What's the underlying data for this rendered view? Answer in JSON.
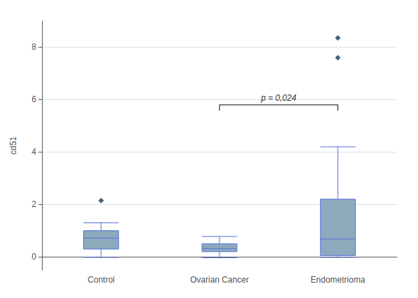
{
  "chart_data": {
    "type": "box",
    "categories": [
      "Control",
      "Ovarian Cancer",
      "Endometrioma"
    ],
    "series": [
      {
        "type": "boxplot",
        "color": "#8da9bc",
        "values": [
          [
            -0.02,
            0.3,
            0.72,
            1.0,
            1.3
          ],
          [
            -0.03,
            0.2,
            0.32,
            0.5,
            0.78
          ],
          [
            -0.02,
            0.05,
            0.68,
            2.2,
            4.2
          ]
        ]
      },
      {
        "type": "scatter",
        "color": "#1c3a58",
        "marker": "diamond",
        "values": [
          [
            2.15
          ],
          [],
          [
            7.6,
            8.35
          ]
        ]
      }
    ],
    "ylabel": "cd51",
    "ylim": [
      -0.5,
      9.0
    ],
    "yticks": [
      0,
      2,
      4,
      6,
      8
    ],
    "grid": true,
    "annotation": {
      "text": "p = 0,024",
      "x": [
        "Ovarian Cancer",
        "Endometrioma"
      ],
      "y": 5.8,
      "tick_h": 0.22
    }
  }
}
